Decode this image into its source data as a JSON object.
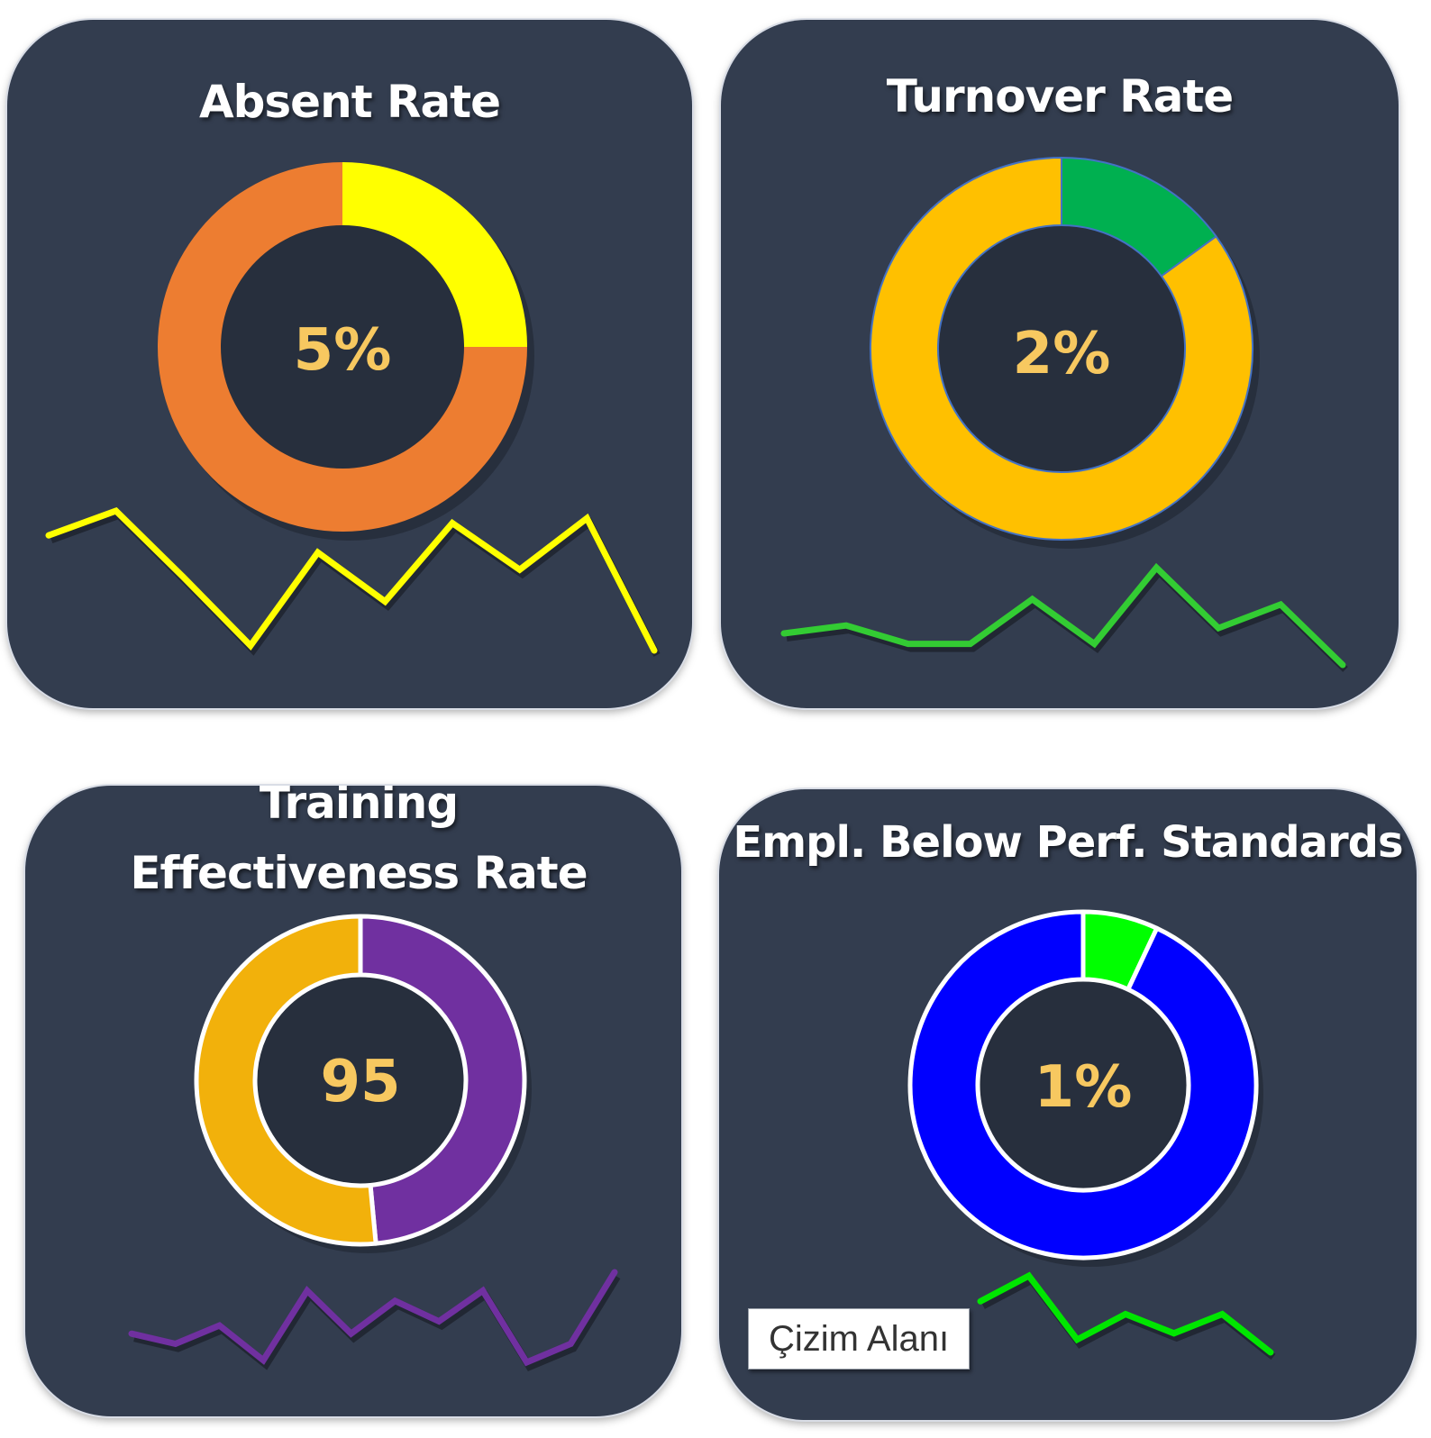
{
  "chart_data": [
    {
      "type": "donut",
      "title": "Absent Rate",
      "center_label": "5%",
      "slices": [
        {
          "value": 0.25,
          "color": "#ffff00"
        },
        {
          "value": 0.75,
          "color": "#ed7d31"
        }
      ],
      "sparkline": {
        "type": "line",
        "color": "#ffff00",
        "values": [
          6.5,
          7.5,
          4.8,
          2.0,
          5.8,
          3.8,
          7.0,
          5.1,
          7.2,
          1.8
        ]
      }
    },
    {
      "type": "donut",
      "title": "Turnover Rate",
      "center_label": "2%",
      "slices": [
        {
          "value": 0.15,
          "color": "#00b050"
        },
        {
          "value": 0.85,
          "color": "#ffc000"
        }
      ],
      "sparkline": {
        "type": "line",
        "color": "#33cc33",
        "values": [
          2.0,
          2.3,
          1.6,
          1.6,
          3.3,
          1.6,
          4.5,
          2.2,
          3.1,
          0.8
        ]
      }
    },
    {
      "type": "donut",
      "title": "Training Effectiveness Rate",
      "center_label": "95",
      "slices": [
        {
          "value": 0.485,
          "color": "#7030a0"
        },
        {
          "value": 0.515,
          "color": "#f2b10b"
        }
      ],
      "sparkline": {
        "type": "line",
        "color": "#7030a0",
        "values": [
          3.5,
          3.0,
          3.9,
          2.2,
          5.6,
          3.5,
          5.1,
          4.1,
          5.6,
          2.1,
          3.0,
          6.5
        ]
      }
    },
    {
      "type": "donut",
      "title": "Empl. Below Perf. Standards",
      "center_label": "1%",
      "slices": [
        {
          "value": 0.07,
          "color": "#00ff00"
        },
        {
          "value": 0.93,
          "color": "#0000ff"
        }
      ],
      "sparkline": {
        "type": "line",
        "color": "#00e600",
        "values": [
          6.0,
          8.0,
          3.0,
          5.0,
          3.5,
          5.0,
          2.0
        ]
      }
    }
  ],
  "tooltip": {
    "label": "Çizim Alanı"
  }
}
